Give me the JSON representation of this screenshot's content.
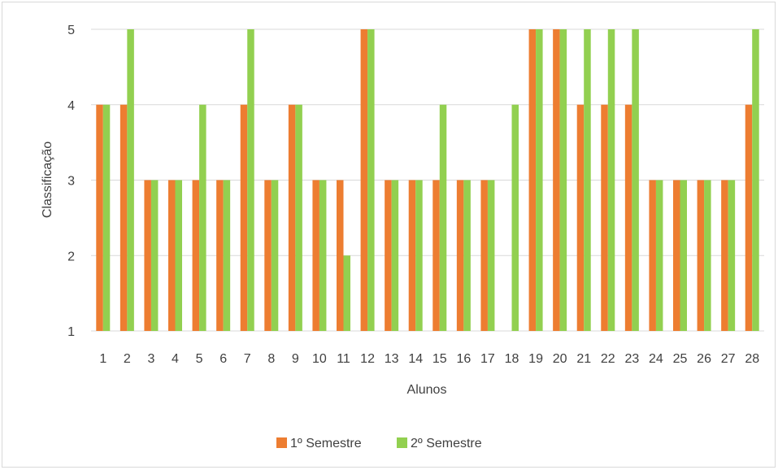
{
  "chart_data": {
    "type": "bar",
    "title": "",
    "xlabel": "Alunos",
    "ylabel": "Classificação",
    "ylim": [
      1,
      5
    ],
    "yticks": [
      1,
      2,
      3,
      4,
      5
    ],
    "grid": true,
    "legend_position": "bottom",
    "categories": [
      "1",
      "2",
      "3",
      "4",
      "5",
      "6",
      "7",
      "8",
      "9",
      "10",
      "11",
      "12",
      "13",
      "14",
      "15",
      "16",
      "17",
      "18",
      "19",
      "20",
      "21",
      "22",
      "23",
      "24",
      "25",
      "26",
      "27",
      "28"
    ],
    "series": [
      {
        "name": "1º Semestre",
        "color": "#ed7d31",
        "values": [
          4,
          4,
          3,
          3,
          3,
          3,
          4,
          3,
          4,
          3,
          3,
          5,
          3,
          3,
          3,
          3,
          3,
          1,
          5,
          5,
          4,
          4,
          4,
          3,
          3,
          3,
          3,
          4
        ]
      },
      {
        "name": "2º Semestre",
        "color": "#92d050",
        "values": [
          4,
          5,
          3,
          3,
          4,
          3,
          5,
          3,
          4,
          3,
          2,
          5,
          3,
          3,
          4,
          3,
          3,
          4,
          5,
          5,
          5,
          5,
          5,
          3,
          3,
          3,
          3,
          5
        ]
      }
    ]
  }
}
